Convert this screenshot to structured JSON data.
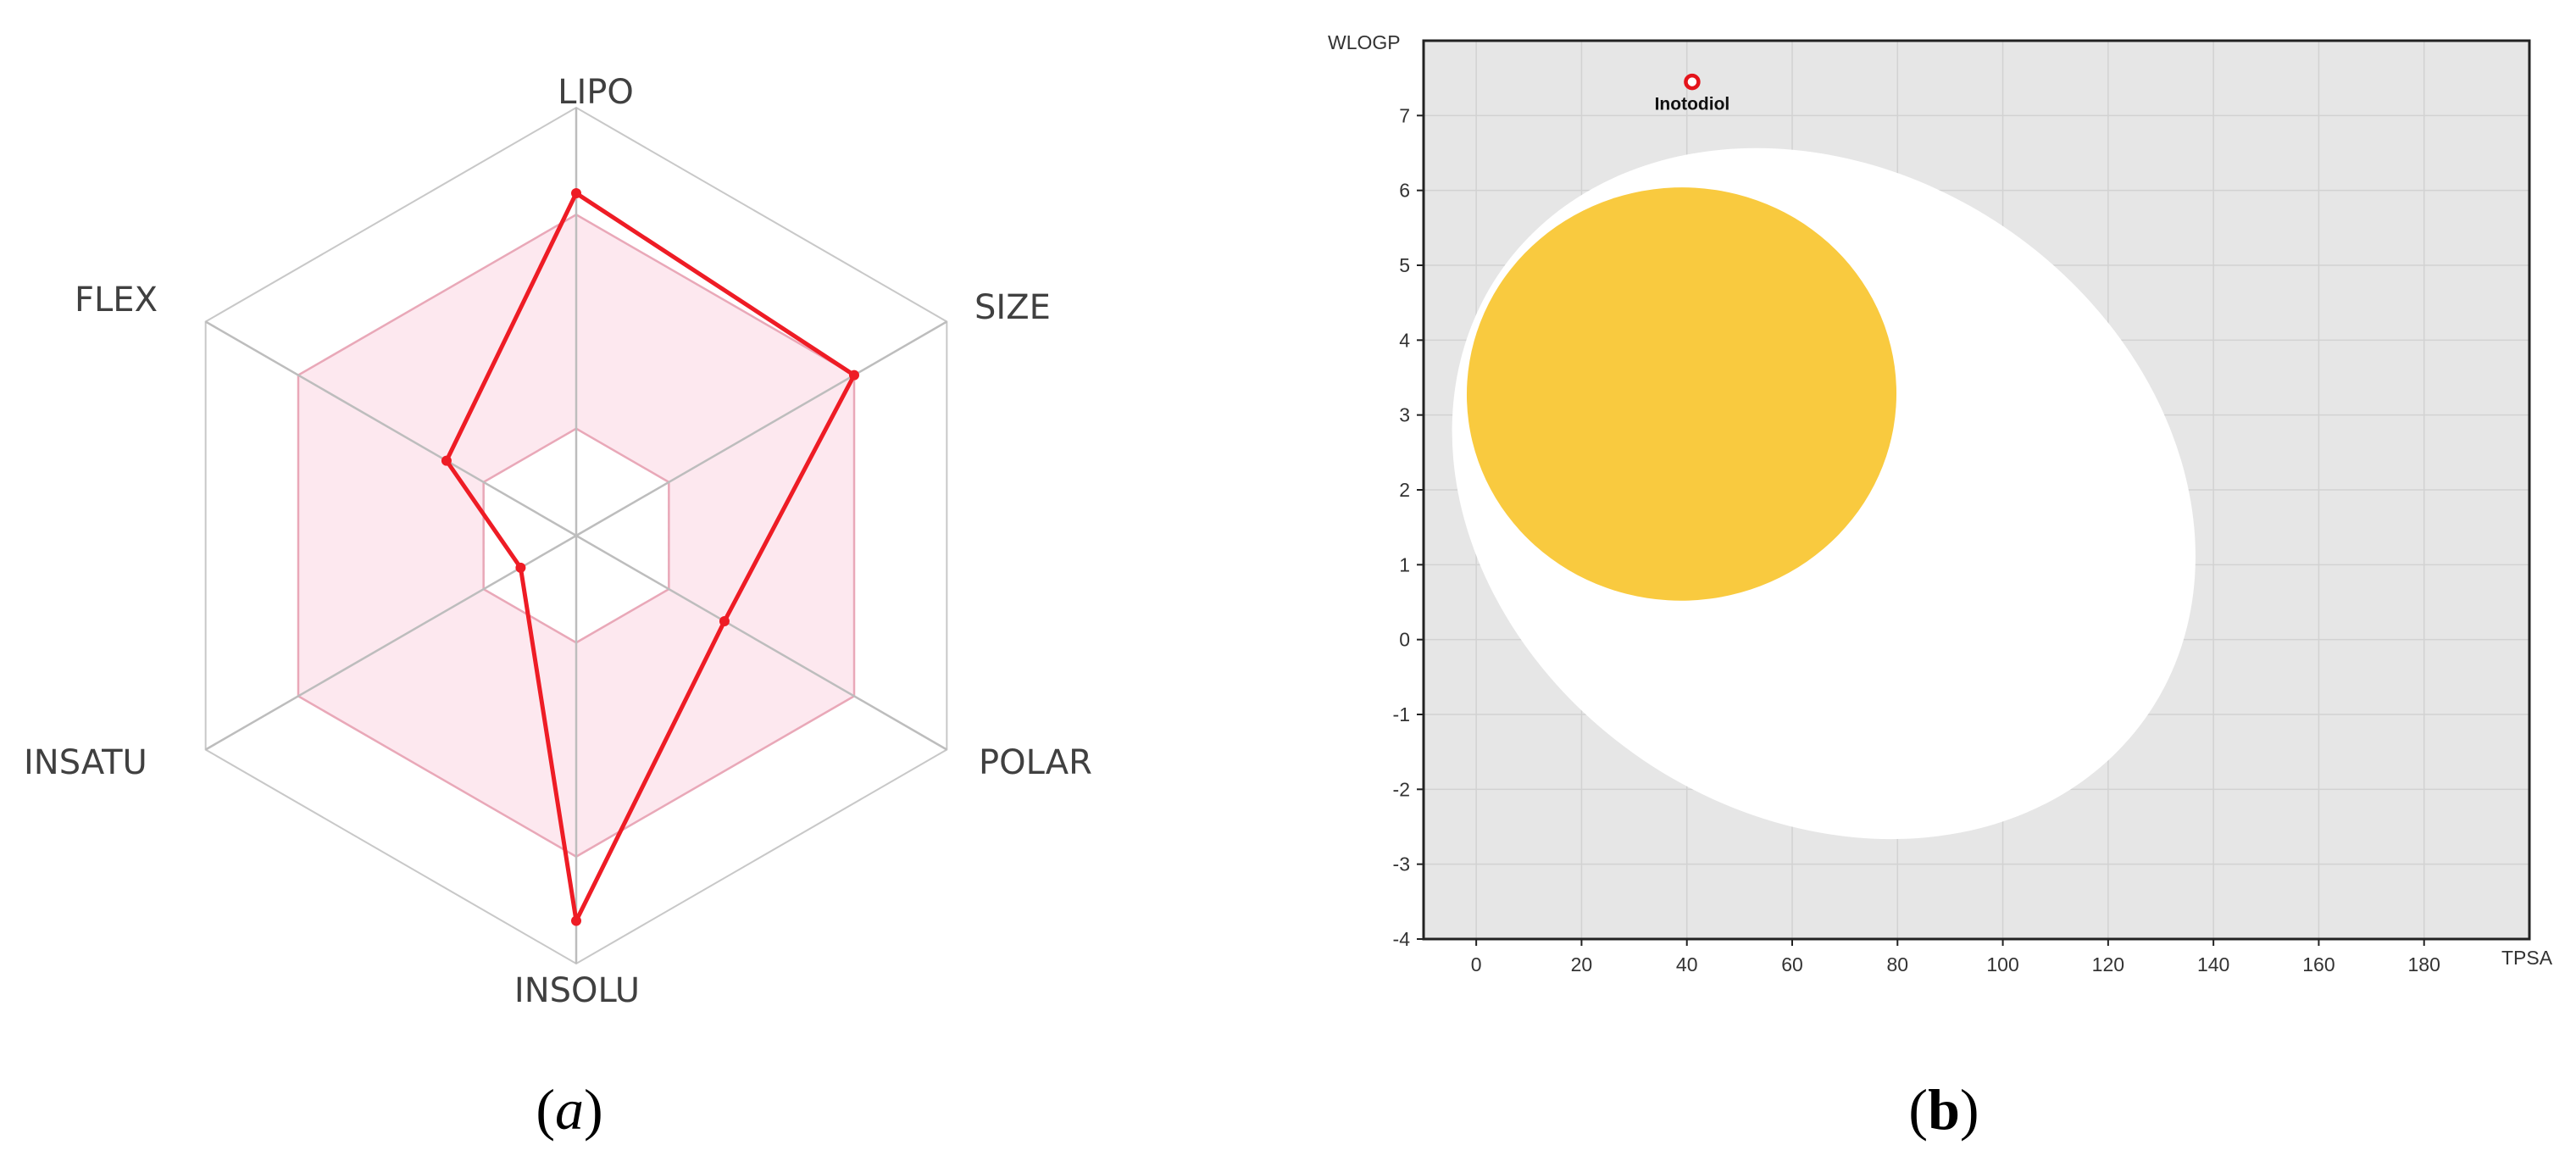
{
  "captions": {
    "a": "(a)",
    "b": "(b)"
  },
  "colors": {
    "radar_polygon": "#ee1c25",
    "optimal_range_fill": "#fde8ef",
    "optimal_range_stroke": "#e9a8b8",
    "radar_grid": "#c8c8c8",
    "plot_background": "#e6e6e6",
    "white_region": "#ffffff",
    "yolk_region": "#f9c630",
    "molecule_point": "#e4141b"
  },
  "chart_data": [
    {
      "type": "radar",
      "axes": [
        "LIPO",
        "SIZE",
        "POLAR",
        "INSOLU",
        "INSATU",
        "FLEX"
      ],
      "rings": 4,
      "scale": [
        0,
        1
      ],
      "optimal_range": {
        "inner": [
          0.25,
          0.25,
          0.25,
          0.25,
          0.25,
          0.25
        ],
        "outer": [
          0.75,
          0.75,
          0.75,
          0.75,
          0.75,
          0.75
        ]
      },
      "values": [
        0.8,
        0.75,
        0.4,
        0.9,
        0.15,
        0.35
      ]
    },
    {
      "type": "scatter",
      "xlabel": "TPSA",
      "ylabel": "WLOGP",
      "xlim": [
        -10,
        200
      ],
      "ylim": [
        -4,
        8
      ],
      "xticks": [
        0,
        20,
        40,
        60,
        80,
        100,
        120,
        140,
        160,
        180
      ],
      "yticks": [
        -4,
        -3,
        -2,
        -1,
        0,
        1,
        2,
        3,
        4,
        5,
        6,
        7
      ],
      "grid": true,
      "regions": [
        {
          "name": "white",
          "center": [
            66,
            1.95
          ],
          "radii": [
            74.5,
            4.3
          ],
          "rotation_deg": 34
        },
        {
          "name": "yolk",
          "center": [
            39,
            3.28
          ],
          "radii": [
            40.8,
            2.76
          ],
          "rotation_deg": -2
        }
      ],
      "points": [
        {
          "label": "Inotodiol",
          "x": 41,
          "y": 7.45
        }
      ]
    }
  ]
}
